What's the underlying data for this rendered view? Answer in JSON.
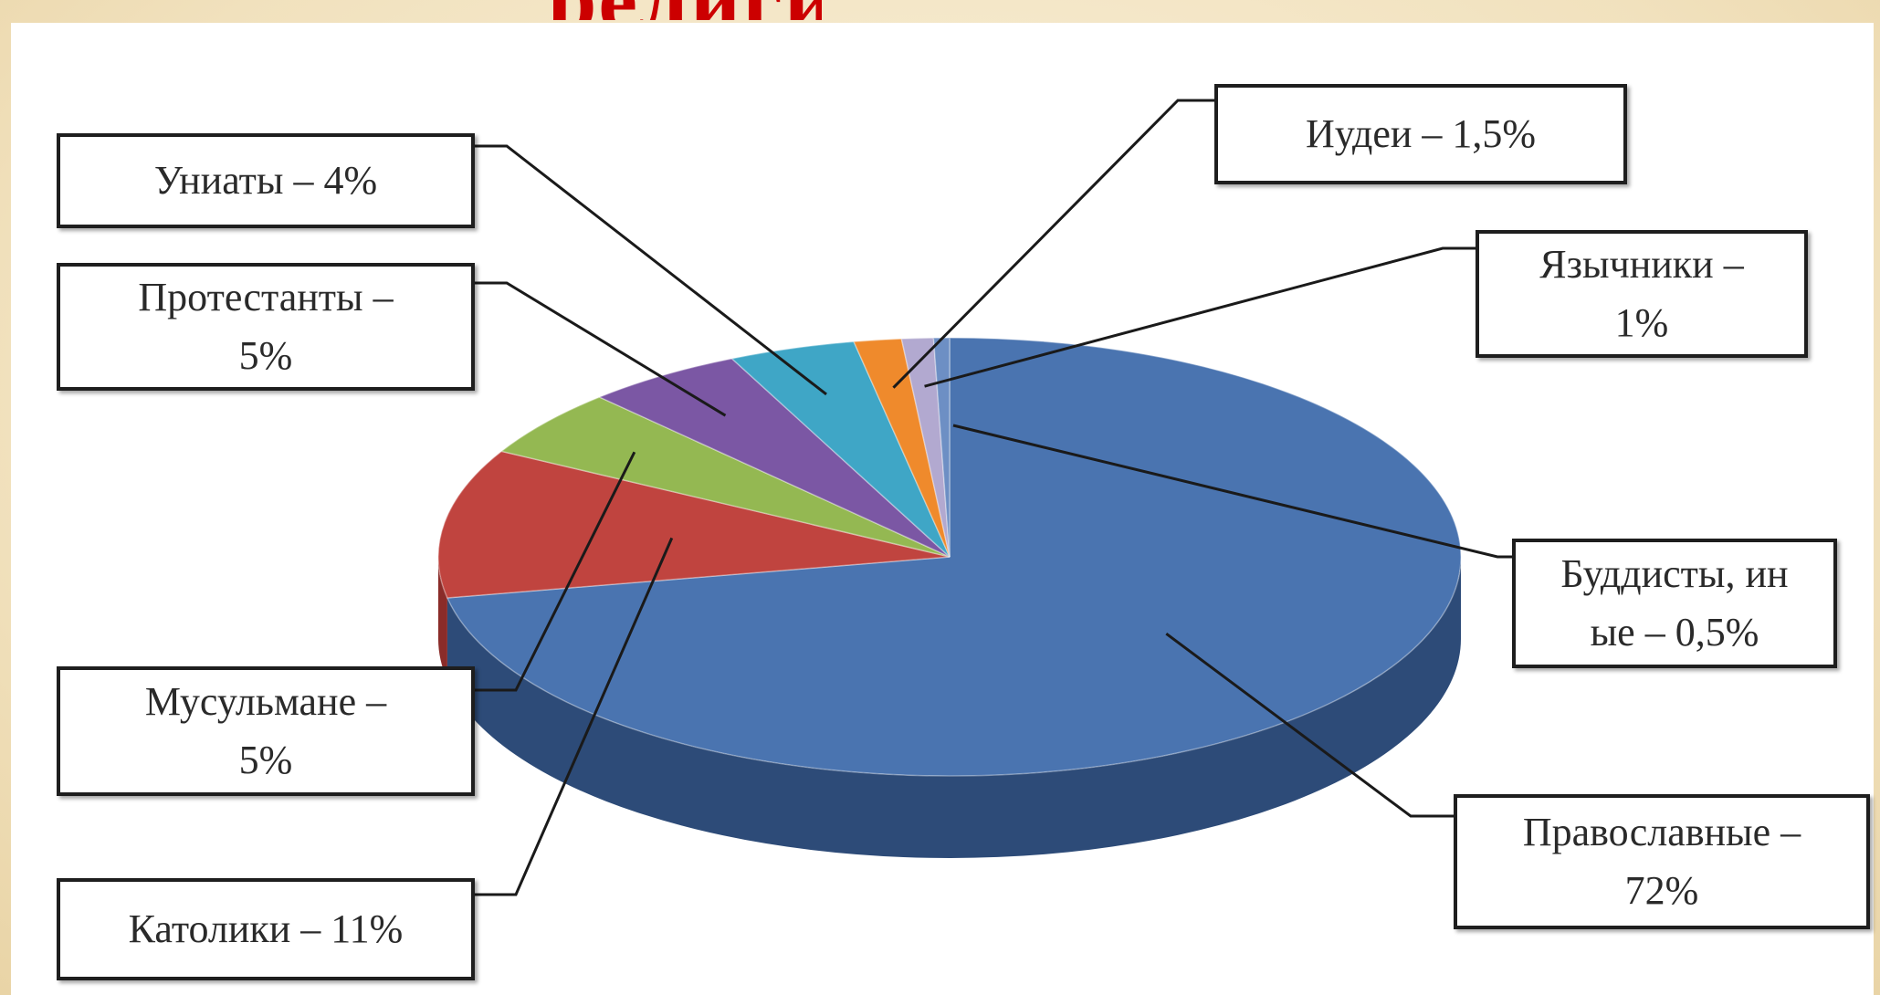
{
  "title_fragment": "религии",
  "chart_data": {
    "type": "pie",
    "title": "",
    "slices": [
      {
        "key": "orthodox",
        "label": "Православные –\n72%",
        "value": 72,
        "color": "#4a74b0",
        "side": "#2d4b78"
      },
      {
        "key": "catholic",
        "label": "Католики – 11%",
        "value": 11,
        "color": "#c0443f",
        "side": "#8a2c29"
      },
      {
        "key": "muslim",
        "label": "Мусульмане –\n5%",
        "value": 5,
        "color": "#94b852",
        "side": "#6a8638"
      },
      {
        "key": "protestant",
        "label": "Протестанты –\n5%",
        "value": 5,
        "color": "#7b57a4",
        "side": "#563b75"
      },
      {
        "key": "uniate",
        "label": "Униаты – 4%",
        "value": 4,
        "color": "#3fa6c6",
        "side": "#2a7790"
      },
      {
        "key": "jews",
        "label": "Иудеи – 1,5%",
        "value": 1.5,
        "color": "#ef8a2c",
        "side": "#b3641c"
      },
      {
        "key": "pagan",
        "label": "Язычники –\n1%",
        "value": 1,
        "color": "#b2a9d0",
        "side": "#827aa1"
      },
      {
        "key": "buddhist",
        "label": "Буддисты, ин\nые – 0,5%",
        "value": 0.5,
        "color": "#6d8fc4",
        "side": "#4a6694"
      }
    ],
    "legend": "callouts"
  }
}
